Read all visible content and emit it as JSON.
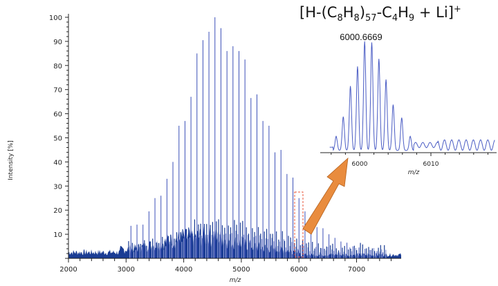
{
  "chart_data": [
    {
      "type": "bar",
      "title": "",
      "xlabel": "m/z",
      "ylabel": "Intensity [%]",
      "xlim": [
        2000,
        7750
      ],
      "ylim": [
        0,
        100
      ],
      "xticks": [
        "2000",
        "3000",
        "4000",
        "5000",
        "6000",
        "7000"
      ],
      "yticks": [
        "10",
        "20",
        "30",
        "40",
        "50",
        "60",
        "70",
        "80",
        "90",
        "100"
      ],
      "grid": false,
      "colors": {
        "major": "#3b4fb8",
        "noise": "#1a3c94",
        "minor": "#8f9bd6"
      },
      "major_peaks": {
        "mz": [
          3084,
          3189,
          3293,
          3397,
          3501,
          3605,
          3709,
          3813,
          3918,
          4022,
          4126,
          4230,
          4334,
          4438,
          4542,
          4646,
          4751,
          4855,
          4959,
          5063,
          5167,
          5271,
          5375,
          5480,
          5584,
          5688,
          5792,
          5896,
          6001,
          6105,
          6209,
          6313,
          6417,
          6521,
          6625,
          6729,
          6833,
          6938,
          7042,
          7146,
          7250,
          7354,
          7458
        ],
        "intensity": [
          13.5,
          14,
          14,
          19.5,
          25,
          26,
          33,
          40,
          55,
          57,
          67,
          85,
          90.5,
          94,
          100,
          95.5,
          86,
          88,
          86,
          82.5,
          66.5,
          68,
          57,
          55,
          44,
          45,
          35,
          33.5,
          25,
          19.5,
          16,
          13,
          12.5,
          10,
          8.5,
          7,
          6.5,
          5,
          4.5,
          4,
          3.5,
          3,
          2.5
        ]
      },
      "highlight_mz": 6001
    },
    {
      "type": "line",
      "title": "[H-(C8H8)57-C4H9 + Li]+",
      "annotation": "6000.6669",
      "xlabel": "m/z",
      "xlim": [
        5995.8,
        6019.0
      ],
      "xticks": [
        "6000",
        "6010"
      ],
      "isotope_peaks": {
        "mz": [
          5995.7,
          5996.7,
          5997.7,
          5998.7,
          5999.7,
          6000.7,
          6001.7,
          6002.7,
          6003.7,
          6004.7,
          6005.9,
          6007.1
        ],
        "relative_intensity": [
          0,
          13,
          31,
          59,
          77,
          100,
          99,
          84,
          65,
          42,
          30,
          13
        ]
      }
    }
  ]
}
